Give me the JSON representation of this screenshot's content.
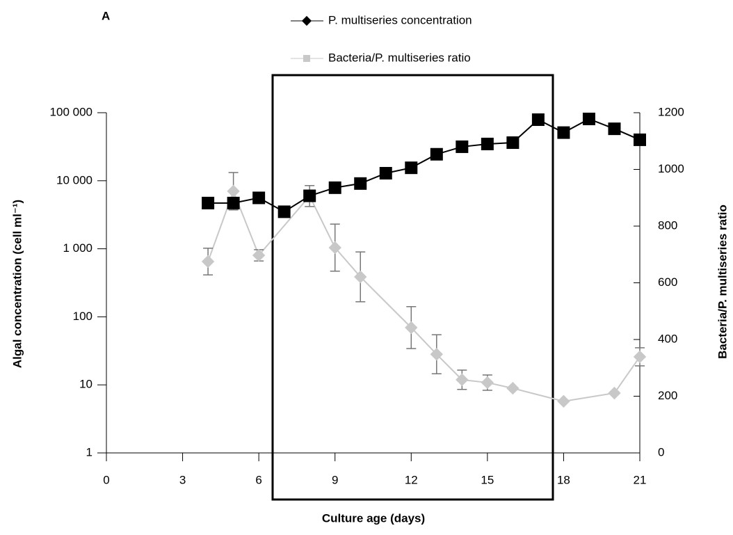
{
  "chart_data": {
    "type": "line",
    "annotation": "A",
    "x_label": "Culture age (days)",
    "y_label": "Algal concentration (cell ml⁻¹)",
    "y2_label": "Bacteria/P. multiseries ratio",
    "xlim": [
      0,
      21
    ],
    "xticks": [
      0,
      3,
      6,
      9,
      12,
      15,
      18,
      21
    ],
    "ylim": [
      1,
      100000
    ],
    "ylog": true,
    "yticks": [
      1,
      10,
      100,
      {
        "value": 1000,
        "label": "1 000"
      },
      {
        "value": 10000,
        "label": "10 000"
      },
      {
        "value": 100000,
        "label": "100 000"
      }
    ],
    "y2lim": [
      0,
      1200
    ],
    "y2ticks": [
      0,
      200,
      400,
      600,
      800,
      1000,
      1200
    ],
    "series": [
      {
        "name": "P. multiseries concentration",
        "color": "#000000",
        "x": [
          4,
          5,
          6,
          7,
          8,
          9,
          10,
          11,
          12,
          13,
          14,
          15,
          16,
          17,
          18,
          19,
          20,
          21
        ],
        "values": [
          4700,
          4700,
          5600,
          3500,
          6000,
          7900,
          9100,
          12900,
          15500,
          24500,
          31600,
          34700,
          36300,
          79000,
          51000,
          81000,
          58000,
          40000
        ]
      },
      {
        "name": "Bacteria/P. multiseries ratio",
        "color": "#c8c8c8",
        "axis": "y2",
        "x": [
          4,
          5,
          6,
          8,
          9,
          10,
          12,
          13,
          14,
          15,
          16,
          18,
          20,
          21
        ],
        "values": [
          675,
          923,
          697,
          906,
          724,
          621,
          442,
          348,
          258,
          248,
          228,
          182,
          211,
          339
        ],
        "errors": [
          47,
          66,
          20,
          37,
          83,
          88,
          74,
          69,
          34,
          27,
          null,
          null,
          null,
          32
        ]
      }
    ]
  }
}
